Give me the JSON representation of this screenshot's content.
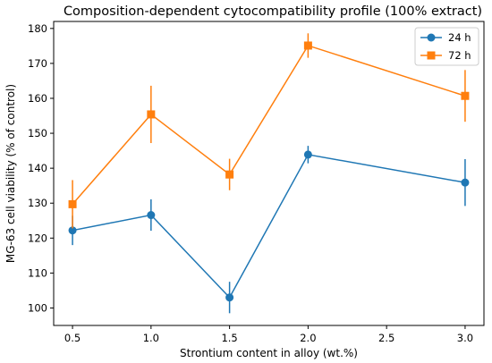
{
  "chart_data": {
    "type": "line",
    "title": "Composition-dependent cytocompatibility profile (100% extract)",
    "xlabel": "Strontium content in alloy (wt.%)",
    "ylabel": "MG-63 cell viability (% of control)",
    "xlim": [
      0.38,
      3.12
    ],
    "ylim": [
      95,
      182
    ],
    "xticks": [
      0.5,
      1.0,
      1.5,
      2.0,
      2.5,
      3.0
    ],
    "xtick_labels": [
      "0.5",
      "1.0",
      "1.5",
      "2.0",
      "2.5",
      "3.0"
    ],
    "yticks": [
      100,
      110,
      120,
      130,
      140,
      150,
      160,
      170,
      180
    ],
    "ytick_labels": [
      "100",
      "110",
      "120",
      "130",
      "140",
      "150",
      "160",
      "170",
      "180"
    ],
    "grid": false,
    "legend_position": "top-right",
    "x": [
      0.5,
      1.0,
      1.5,
      2.0,
      3.0
    ],
    "series": [
      {
        "name": "24 h",
        "color": "#1f77b4",
        "marker": "circle",
        "values": [
          122.2,
          126.6,
          103.0,
          143.9,
          135.9
        ],
        "errors": [
          4.2,
          4.5,
          4.5,
          2.5,
          6.7
        ]
      },
      {
        "name": "72 h",
        "color": "#ff7f0e",
        "marker": "square",
        "values": [
          129.7,
          155.4,
          138.2,
          175.1,
          160.7
        ],
        "errors": [
          6.9,
          8.2,
          4.5,
          3.5,
          7.4
        ]
      }
    ]
  }
}
